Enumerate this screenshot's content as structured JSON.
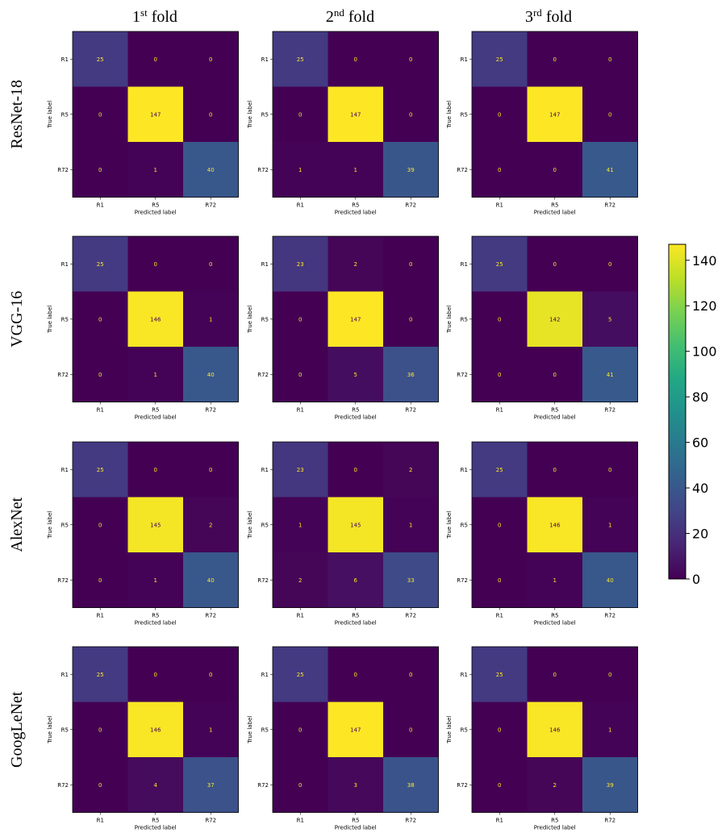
{
  "column_titles": [
    {
      "base": "1",
      "sup": "st",
      "rest": " fold"
    },
    {
      "base": "2",
      "sup": "nd",
      "rest": " fold"
    },
    {
      "base": "3",
      "sup": "rd",
      "rest": " fold"
    }
  ],
  "row_titles": [
    "ResNet-18",
    "VGG-16",
    "AlexNet",
    "GoogLeNet"
  ],
  "chart_data": {
    "type": "heatmap",
    "colormap": "viridis",
    "labels": [
      "R1",
      "R5",
      "R72"
    ],
    "xlabel": "Predicted label",
    "ylabel": "True label",
    "vmin": 0,
    "vmax": 147,
    "colorbar": {
      "ticks": [
        0,
        20,
        40,
        60,
        80,
        100,
        120,
        140
      ],
      "placement": "right"
    },
    "matrices": [
      [
        [
          [
            25,
            0,
            0
          ],
          [
            0,
            147,
            0
          ],
          [
            0,
            1,
            40
          ]
        ],
        [
          [
            25,
            0,
            0
          ],
          [
            0,
            147,
            0
          ],
          [
            1,
            1,
            39
          ]
        ],
        [
          [
            25,
            0,
            0
          ],
          [
            0,
            147,
            0
          ],
          [
            0,
            0,
            41
          ]
        ]
      ],
      [
        [
          [
            25,
            0,
            0
          ],
          [
            0,
            146,
            1
          ],
          [
            0,
            1,
            40
          ]
        ],
        [
          [
            23,
            2,
            0
          ],
          [
            0,
            147,
            0
          ],
          [
            0,
            5,
            36
          ]
        ],
        [
          [
            25,
            0,
            0
          ],
          [
            0,
            142,
            5
          ],
          [
            0,
            0,
            41
          ]
        ]
      ],
      [
        [
          [
            25,
            0,
            0
          ],
          [
            0,
            145,
            2
          ],
          [
            0,
            1,
            40
          ]
        ],
        [
          [
            23,
            0,
            2
          ],
          [
            1,
            145,
            1
          ],
          [
            2,
            6,
            33
          ]
        ],
        [
          [
            25,
            0,
            0
          ],
          [
            0,
            146,
            1
          ],
          [
            0,
            1,
            40
          ]
        ]
      ],
      [
        [
          [
            25,
            0,
            0
          ],
          [
            0,
            146,
            1
          ],
          [
            0,
            4,
            37
          ]
        ],
        [
          [
            25,
            0,
            0
          ],
          [
            0,
            147,
            0
          ],
          [
            0,
            3,
            38
          ]
        ],
        [
          [
            25,
            0,
            0
          ],
          [
            0,
            146,
            1
          ],
          [
            0,
            2,
            39
          ]
        ]
      ]
    ]
  }
}
